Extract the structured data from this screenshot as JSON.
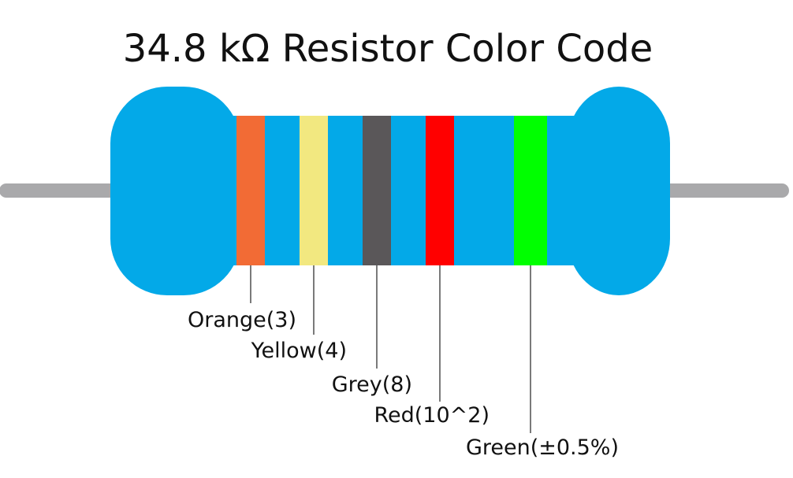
{
  "title": "34.8 kΩ Resistor Color Code",
  "bands": [
    {
      "label": "Orange(3)",
      "color": "#f26b35"
    },
    {
      "label": "Yellow(4)",
      "color": "#f2e880"
    },
    {
      "label": "Grey(8)",
      "color": "#5a5759"
    },
    {
      "label": "Red(10^2)",
      "color": "#ff0000"
    },
    {
      "label": "Green(±0.5%)",
      "color": "#00ff00"
    }
  ]
}
